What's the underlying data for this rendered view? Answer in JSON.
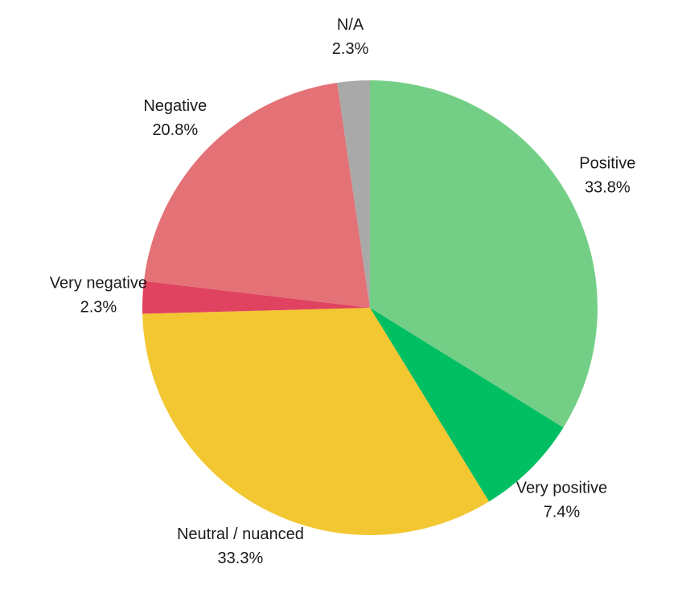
{
  "chart_data": {
    "type": "pie",
    "title": "",
    "start_angle_deg": 0,
    "direction": "clockwise",
    "slices": [
      {
        "label": "Positive",
        "value": 33.8,
        "value_label": "33.8%",
        "color": "#74cf86"
      },
      {
        "label": "Very positive",
        "value": 7.4,
        "value_label": "7.4%",
        "color": "#00bf63"
      },
      {
        "label": "Neutral / nuanced",
        "value": 33.3,
        "value_label": "33.3%",
        "color": "#f2c731"
      },
      {
        "label": "Very negative",
        "value": 2.3,
        "value_label": "2.3%",
        "color": "#e0435f"
      },
      {
        "label": "Negative",
        "value": 20.8,
        "value_label": "20.8%",
        "color": "#e37175"
      },
      {
        "label": "N/A",
        "value": 2.3,
        "value_label": "2.3%",
        "color": "#a9a9a9"
      }
    ]
  }
}
